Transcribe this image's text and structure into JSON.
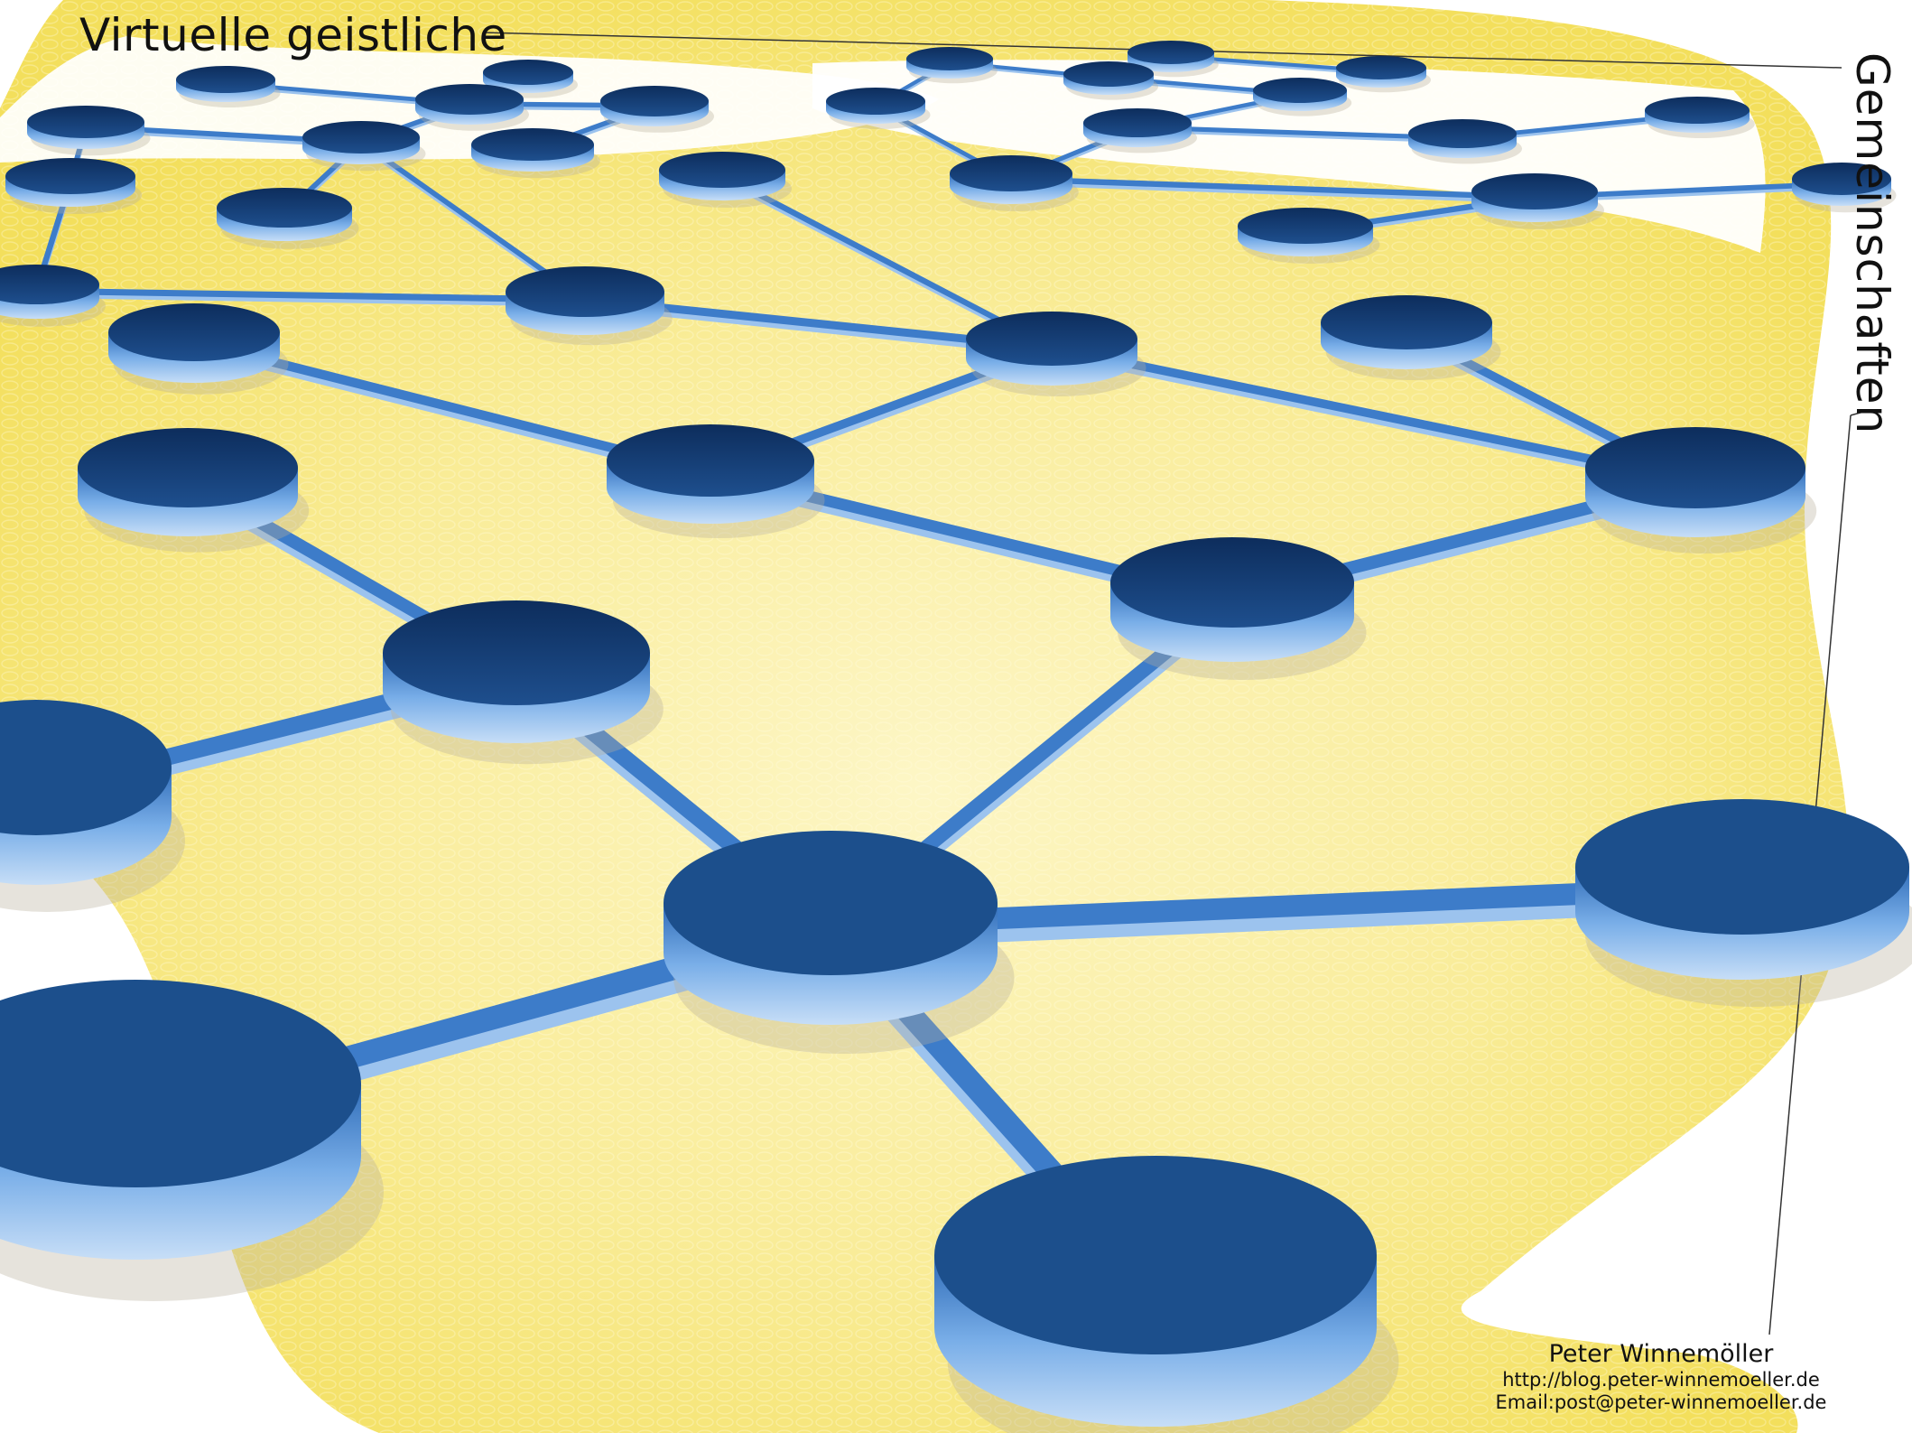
{
  "title": "Virtuelle geistliche",
  "title_vertical": "Gemeinschaften",
  "author": {
    "name": "Peter Winnemöller",
    "blog": "http://blog.peter-winnemoeller.de",
    "email": "Email:post@peter-winnemoeller.de"
  },
  "colors": {
    "background": "#ffffff",
    "wash_yellow": "#f6e77a",
    "wash_light": "#fbf3c0",
    "node_top": "#1c4f8c",
    "node_top_far": "#0d2a55",
    "node_side": "#6ea2df",
    "connector": "#3d7cc9",
    "text": "#111111"
  },
  "network_icon": "node-network-graphic"
}
